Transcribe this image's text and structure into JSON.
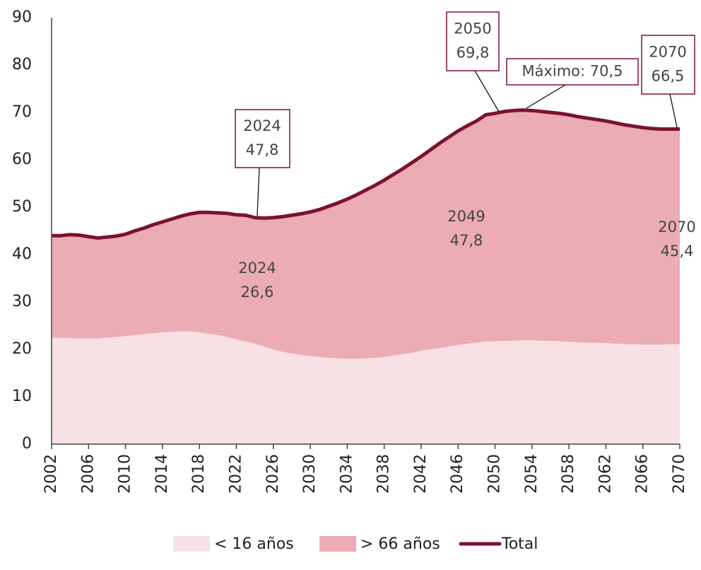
{
  "chart_data": {
    "type": "stacked_area",
    "x": [
      2002,
      2003,
      2004,
      2005,
      2006,
      2007,
      2008,
      2009,
      2010,
      2011,
      2012,
      2013,
      2014,
      2015,
      2016,
      2017,
      2018,
      2019,
      2020,
      2021,
      2022,
      2023,
      2024,
      2025,
      2026,
      2027,
      2028,
      2029,
      2030,
      2031,
      2032,
      2033,
      2034,
      2035,
      2036,
      2037,
      2038,
      2039,
      2040,
      2041,
      2042,
      2043,
      2044,
      2045,
      2046,
      2047,
      2048,
      2049,
      2050,
      2051,
      2052,
      2053,
      2054,
      2055,
      2056,
      2057,
      2058,
      2059,
      2060,
      2061,
      2062,
      2063,
      2064,
      2065,
      2066,
      2067,
      2068,
      2069,
      2070
    ],
    "xlim": [
      2002,
      2070
    ],
    "xticks": [
      2002,
      2006,
      2010,
      2014,
      2018,
      2022,
      2026,
      2030,
      2034,
      2038,
      2042,
      2046,
      2050,
      2054,
      2058,
      2062,
      2066,
      2070
    ],
    "ylim": [
      0,
      90
    ],
    "yticks": [
      0,
      10,
      20,
      30,
      40,
      50,
      60,
      70,
      80,
      90
    ],
    "series": [
      {
        "name": "< 16 años",
        "color": "#f7e1e4",
        "kind": "area",
        "values": [
          22.5,
          22.4,
          22.4,
          22.3,
          22.3,
          22.3,
          22.5,
          22.6,
          22.8,
          23.0,
          23.2,
          23.4,
          23.6,
          23.7,
          23.8,
          23.8,
          23.6,
          23.3,
          23.0,
          22.6,
          22.1,
          21.7,
          21.2,
          20.6,
          20.0,
          19.5,
          19.1,
          18.8,
          18.6,
          18.4,
          18.2,
          18.1,
          18.0,
          18.0,
          18.1,
          18.2,
          18.4,
          18.7,
          19.0,
          19.3,
          19.7,
          20.0,
          20.3,
          20.6,
          20.9,
          21.2,
          21.4,
          21.7,
          21.7,
          21.8,
          21.8,
          21.9,
          21.9,
          21.8,
          21.8,
          21.7,
          21.6,
          21.5,
          21.4,
          21.4,
          21.3,
          21.2,
          21.1,
          21.1,
          21.0,
          21.0,
          21.0,
          21.1,
          21.1
        ]
      },
      {
        "name": "> 66 años",
        "color": "#ebacb3",
        "kind": "area",
        "values": [
          21.5,
          21.6,
          21.8,
          21.8,
          21.5,
          21.2,
          21.2,
          21.3,
          21.5,
          22.0,
          22.4,
          22.9,
          23.3,
          23.8,
          24.3,
          24.8,
          25.3,
          25.6,
          25.8,
          26.1,
          26.3,
          26.6,
          26.6,
          27.1,
          27.8,
          28.5,
          29.2,
          29.8,
          30.4,
          31.1,
          32.0,
          32.8,
          33.7,
          34.6,
          35.5,
          36.4,
          37.3,
          38.2,
          39.1,
          40.1,
          41.0,
          42.1,
          43.2,
          44.2,
          45.2,
          46.0,
          46.8,
          47.8,
          48.1,
          48.4,
          48.6,
          48.6,
          48.5,
          48.4,
          48.2,
          48.1,
          47.9,
          47.6,
          47.4,
          47.1,
          46.9,
          46.6,
          46.3,
          46.0,
          45.8,
          45.6,
          45.5,
          45.4,
          45.4
        ]
      },
      {
        "name": "Total",
        "color": "#7b1230",
        "kind": "line",
        "values": [
          44.0,
          44.0,
          44.2,
          44.1,
          43.8,
          43.5,
          43.7,
          43.9,
          44.3,
          45.0,
          45.6,
          46.3,
          46.9,
          47.5,
          48.1,
          48.6,
          48.9,
          48.9,
          48.8,
          48.7,
          48.4,
          48.3,
          47.8,
          47.7,
          47.8,
          48.0,
          48.3,
          48.6,
          49.0,
          49.5,
          50.2,
          50.9,
          51.7,
          52.6,
          53.6,
          54.6,
          55.7,
          56.9,
          58.1,
          59.4,
          60.7,
          62.1,
          63.5,
          64.8,
          66.1,
          67.2,
          68.2,
          69.5,
          69.8,
          70.2,
          70.4,
          70.5,
          70.4,
          70.2,
          70.0,
          69.8,
          69.5,
          69.1,
          68.8,
          68.5,
          68.2,
          67.8,
          67.4,
          67.1,
          66.8,
          66.6,
          66.5,
          66.5,
          66.5
        ]
      }
    ],
    "annotations": [
      {
        "lines": [
          "2024",
          "47,8"
        ],
        "boxed": true
      },
      {
        "lines": [
          "2050",
          "69,8"
        ],
        "boxed": true
      },
      {
        "lines": [
          "Máximo: 70,5"
        ],
        "boxed": true
      },
      {
        "lines": [
          "2070",
          "66,5"
        ],
        "boxed": true
      },
      {
        "lines": [
          "2024",
          "26,6"
        ],
        "boxed": false
      },
      {
        "lines": [
          "2049",
          "47,8"
        ],
        "boxed": false
      },
      {
        "lines": [
          "2070",
          "45,4"
        ],
        "boxed": false
      }
    ],
    "legend": "bottom"
  }
}
